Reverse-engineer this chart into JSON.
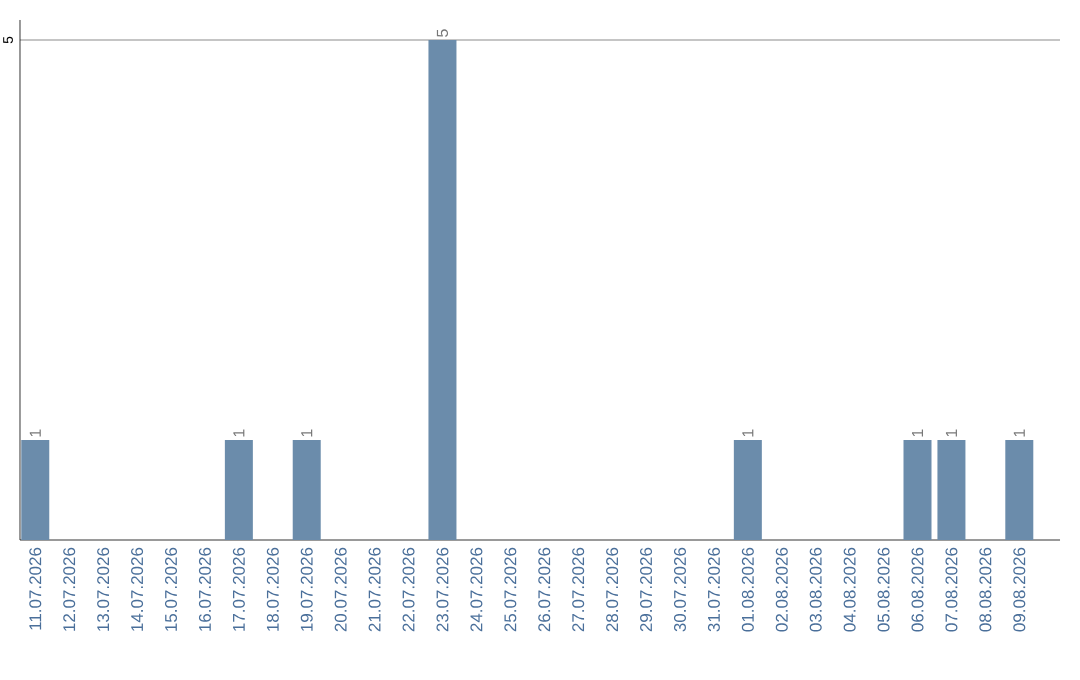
{
  "chart_data": {
    "type": "bar",
    "categories": [
      "11.07.2026",
      "12.07.2026",
      "13.07.2026",
      "14.07.2026",
      "15.07.2026",
      "16.07.2026",
      "17.07.2026",
      "18.07.2026",
      "19.07.2026",
      "20.07.2026",
      "21.07.2026",
      "22.07.2026",
      "23.07.2026",
      "24.07.2026",
      "25.07.2026",
      "26.07.2026",
      "27.07.2026",
      "28.07.2026",
      "29.07.2026",
      "30.07.2026",
      "31.07.2026",
      "01.08.2026",
      "02.08.2026",
      "03.08.2026",
      "04.08.2026",
      "05.08.2026",
      "06.08.2026",
      "07.08.2026",
      "08.08.2026",
      "09.08.2026"
    ],
    "values": [
      1,
      0,
      0,
      0,
      0,
      0,
      1,
      0,
      1,
      0,
      0,
      0,
      5,
      0,
      0,
      0,
      0,
      0,
      0,
      0,
      0,
      1,
      0,
      0,
      0,
      0,
      1,
      1,
      0,
      1
    ],
    "value_labels": [
      "1",
      null,
      null,
      null,
      null,
      null,
      "1",
      null,
      "1",
      null,
      null,
      null,
      "5",
      null,
      null,
      null,
      null,
      null,
      null,
      null,
      null,
      "1",
      null,
      null,
      null,
      null,
      "1",
      "1",
      null,
      "1"
    ],
    "color": "#6b8cab",
    "ylim": [
      0,
      5.2
    ],
    "yticks": [
      5
    ],
    "grid": "y"
  }
}
